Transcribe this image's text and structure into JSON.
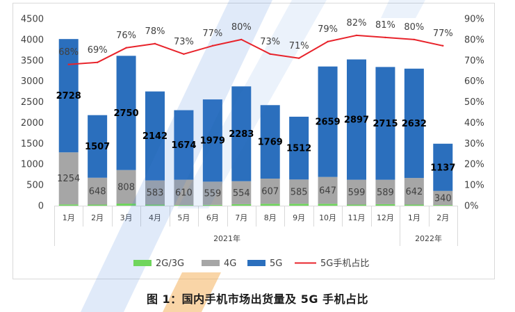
{
  "caption": "图 1：国内手机市场出货量及 5G 手机占比",
  "chart_data": {
    "type": "bar",
    "stacked": true,
    "category_groups": [
      {
        "label": "2021年",
        "categories": [
          "1月",
          "2月",
          "3月",
          "4月",
          "5月",
          "6月",
          "7月",
          "8月",
          "9月",
          "10月",
          "11月",
          "12月"
        ]
      },
      {
        "label": "2022年",
        "categories": [
          "1月",
          "2月"
        ]
      }
    ],
    "series": [
      {
        "name": "2G/3G",
        "type": "bar",
        "axis": "left",
        "color": "#6fd55c",
        "show_labels": false,
        "values": [
          30,
          25,
          50,
          25,
          15,
          20,
          35,
          45,
          45,
          45,
          25,
          35,
          25,
          15
        ]
      },
      {
        "name": "4G",
        "type": "bar",
        "axis": "left",
        "color": "#a6a6a6",
        "show_labels": true,
        "values": [
          1254,
          648,
          808,
          583,
          610,
          559,
          554,
          607,
          585,
          647,
          599,
          589,
          642,
          340
        ]
      },
      {
        "name": "5G",
        "type": "bar",
        "axis": "left",
        "color": "#2b6fbd",
        "show_labels": true,
        "values": [
          2728,
          1507,
          2750,
          2142,
          1674,
          1979,
          2283,
          1769,
          1512,
          2659,
          2897,
          2715,
          2632,
          1137
        ]
      },
      {
        "name": "5G手机占比",
        "type": "line",
        "axis": "right",
        "color": "#e8232b",
        "show_labels": true,
        "unit": "%",
        "values": [
          68,
          69,
          76,
          78,
          73,
          77,
          80,
          73,
          71,
          79,
          82,
          81,
          80,
          77
        ]
      }
    ],
    "ylim": [
      0,
      4500
    ],
    "yticks": [
      0,
      500,
      1000,
      1500,
      2000,
      2500,
      3000,
      3500,
      4000,
      4500
    ],
    "y2lim": [
      0,
      90
    ],
    "y2ticks": [
      0,
      10,
      20,
      30,
      40,
      50,
      60,
      70,
      80,
      90
    ],
    "y2_unit": "%",
    "grid": false,
    "legend": "bottom"
  }
}
